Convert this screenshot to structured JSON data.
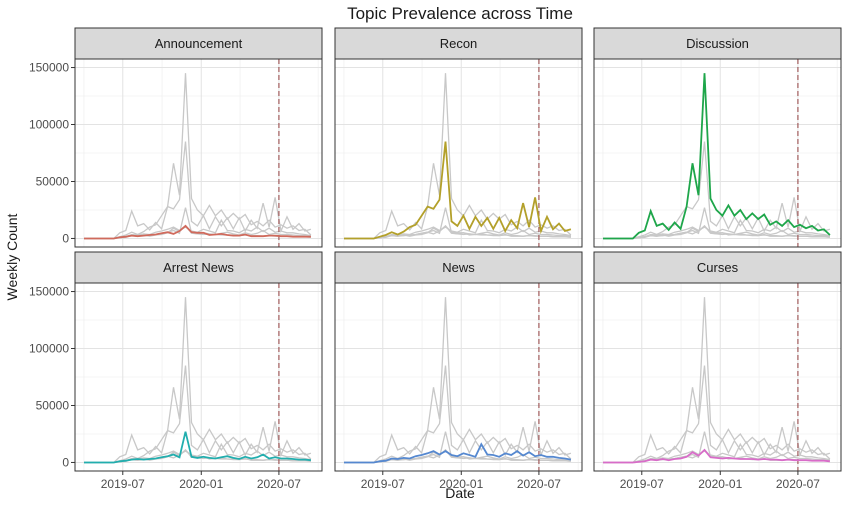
{
  "chart_data": {
    "type": "line",
    "title": "Topic Prevalence across Time",
    "xlabel": "Date",
    "ylabel": "Weekly Count",
    "xlim": [
      "2019-03-11",
      "2020-10-10"
    ],
    "ylim": [
      -7500,
      157500
    ],
    "x_ticks": [
      "2019-07",
      "2020-01",
      "2020-07"
    ],
    "y_ticks": [
      0,
      50000,
      100000,
      150000
    ],
    "y_tick_labels": [
      "0",
      "50000",
      "100000",
      "150000"
    ],
    "grid": true,
    "reference_line": {
      "date": "2020-07-01",
      "style": "dashed",
      "color": "#a05a5a"
    },
    "background_series_color": "#c8c8c8",
    "x": [
      "2019-04-01",
      "2019-04-15",
      "2019-04-29",
      "2019-05-13",
      "2019-05-27",
      "2019-06-10",
      "2019-06-24",
      "2019-07-08",
      "2019-07-22",
      "2019-08-05",
      "2019-08-19",
      "2019-09-02",
      "2019-09-16",
      "2019-09-30",
      "2019-10-14",
      "2019-10-28",
      "2019-11-11",
      "2019-11-25",
      "2019-12-09",
      "2019-12-23",
      "2020-01-06",
      "2020-01-20",
      "2020-02-03",
      "2020-02-17",
      "2020-03-02",
      "2020-03-16",
      "2020-03-30",
      "2020-04-13",
      "2020-04-27",
      "2020-05-11",
      "2020-05-25",
      "2020-06-08",
      "2020-06-22",
      "2020-07-06",
      "2020-07-20",
      "2020-08-03",
      "2020-08-17",
      "2020-08-31",
      "2020-09-14"
    ],
    "panels": [
      {
        "name": "Announcement",
        "color": "#d06a5c",
        "values": [
          0,
          0,
          0,
          0,
          0,
          0,
          1000,
          1500,
          2500,
          2000,
          2500,
          3000,
          3500,
          4500,
          5500,
          4000,
          6500,
          11000,
          5500,
          5000,
          5000,
          3000,
          3500,
          4000,
          3000,
          2500,
          2500,
          3500,
          2000,
          2000,
          2000,
          2500,
          2500,
          2000,
          2000,
          1500,
          1500,
          1500,
          1500
        ]
      },
      {
        "name": "Recon",
        "color": "#b3a02a",
        "values": [
          0,
          0,
          0,
          0,
          0,
          0,
          1500,
          3000,
          5500,
          3500,
          6000,
          10000,
          12000,
          20000,
          28000,
          26000,
          34000,
          85000,
          15000,
          11000,
          20000,
          8500,
          19000,
          11000,
          18000,
          8500,
          18000,
          6500,
          16000,
          9000,
          31000,
          10000,
          36000,
          6500,
          19000,
          8000,
          13000,
          6500,
          8000
        ]
      },
      {
        "name": "Discussion",
        "color": "#1ea64a",
        "values": [
          0,
          0,
          0,
          0,
          0,
          0,
          5000,
          7000,
          24000,
          11000,
          13000,
          7500,
          14000,
          8500,
          28000,
          66000,
          38000,
          145000,
          35000,
          25000,
          20000,
          29000,
          20000,
          25000,
          17000,
          22000,
          17000,
          21000,
          12000,
          15000,
          11000,
          16000,
          10000,
          12000,
          9000,
          11000,
          7000,
          8000,
          3000
        ]
      },
      {
        "name": "Arrest News",
        "color": "#22aeae",
        "values": [
          0,
          0,
          0,
          0,
          0,
          0,
          1000,
          1500,
          2500,
          3000,
          2500,
          3000,
          3500,
          4500,
          5500,
          7000,
          4500,
          27000,
          5000,
          4000,
          5000,
          4000,
          3500,
          4500,
          5500,
          4000,
          3000,
          5000,
          3500,
          4500,
          7000,
          3500,
          4500,
          3500,
          3500,
          3000,
          2500,
          2500,
          2000
        ]
      },
      {
        "name": "News",
        "color": "#5588d0",
        "values": [
          0,
          0,
          0,
          0,
          0,
          0,
          1000,
          1500,
          3500,
          3000,
          4000,
          3500,
          5500,
          6500,
          8000,
          10000,
          7000,
          10000,
          6500,
          5500,
          8000,
          6500,
          5000,
          16000,
          7000,
          6500,
          5000,
          8000,
          6500,
          10000,
          6000,
          9000,
          5500,
          6500,
          5000,
          5000,
          4000,
          3500,
          2500
        ]
      },
      {
        "name": "Curses",
        "color": "#d86cc8",
        "values": [
          0,
          0,
          0,
          0,
          0,
          0,
          500,
          1000,
          2500,
          2000,
          3000,
          2000,
          3000,
          3500,
          5000,
          9000,
          6000,
          11000,
          4500,
          4000,
          3500,
          4000,
          3500,
          3000,
          3000,
          3000,
          2500,
          3000,
          2500,
          2500,
          2000,
          2500,
          2000,
          2000,
          2000,
          1500,
          1500,
          1500,
          1000
        ]
      }
    ]
  }
}
